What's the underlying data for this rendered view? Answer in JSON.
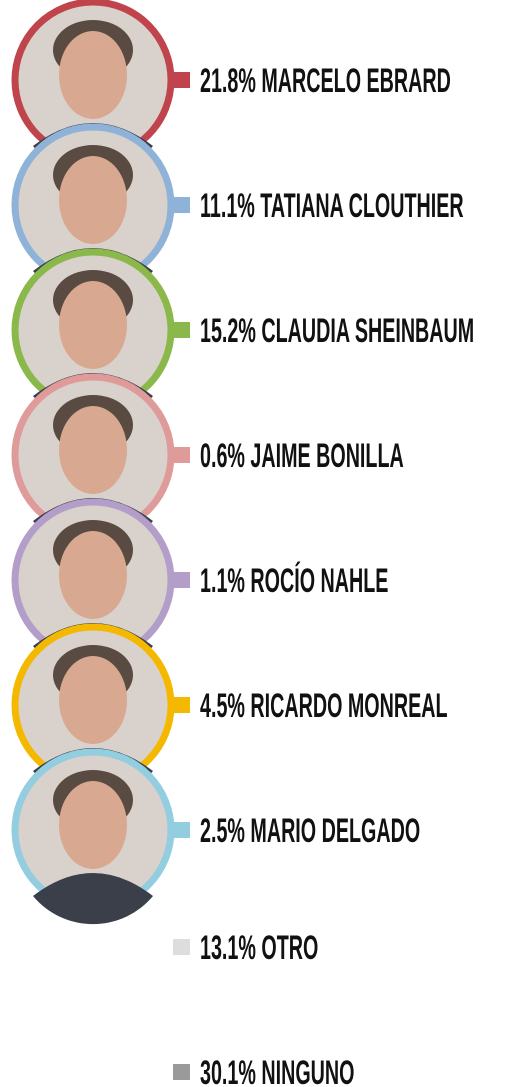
{
  "items": [
    {
      "percent": "21.8%",
      "name": "MARCELO EBRARD",
      "color": "#c0444c"
    },
    {
      "percent": "11.1%",
      "name": "TATIANA CLOUTHIER",
      "color": "#8fb2d8"
    },
    {
      "percent": "15.2%",
      "name": "CLAUDIA SHEINBAUM",
      "color": "#8ab84a"
    },
    {
      "percent": "0.6%",
      "name": "JAIME BONILLA",
      "color": "#df9a9a"
    },
    {
      "percent": "1.1%",
      "name": "ROCÍO NAHLE",
      "color": "#b39ec9"
    },
    {
      "percent": "4.5%",
      "name": "RICARDO MONREAL",
      "color": "#f5b800"
    },
    {
      "percent": "2.5%",
      "name": "MARIO DELGADO",
      "color": "#92cde0"
    }
  ],
  "others": [
    {
      "percent": "13.1%",
      "name": "OTRO",
      "color": "#dddddd"
    },
    {
      "percent": "30.1%",
      "name": "NINGUNO",
      "color": "#9a9a9a"
    }
  ]
}
